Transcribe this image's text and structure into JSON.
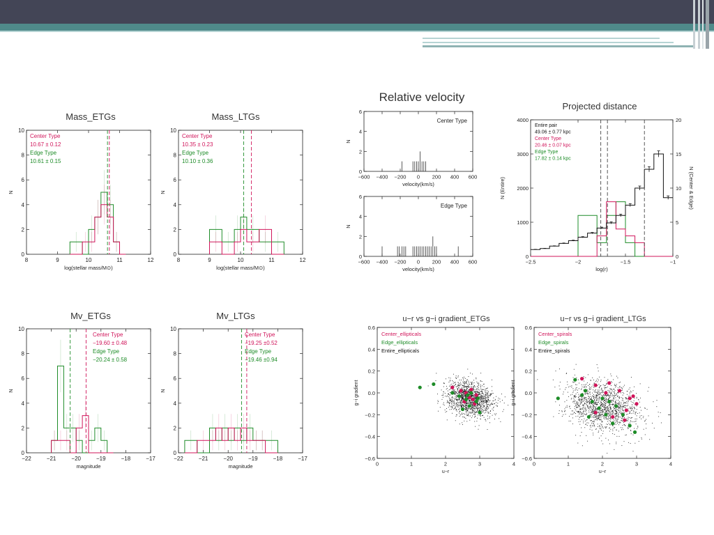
{
  "colors": {
    "center": "#d0145a",
    "edge": "#1e8c28",
    "entire": "#111111",
    "header": "#434556",
    "accent": "#4f8a8a"
  },
  "chart_data": [
    {
      "id": "mass_etgs",
      "type": "bar",
      "title": "Mass_ETGs",
      "xlabel": "log(stellar mass/M⊙)",
      "ylabel": "N",
      "xlim": [
        8,
        12
      ],
      "ylim": [
        0,
        10
      ],
      "xticks": [
        8,
        9,
        10,
        11,
        12
      ],
      "yticks": [
        0,
        2,
        4,
        6,
        8,
        10
      ],
      "bin_edges": [
        9.4,
        9.8,
        10.0,
        10.2,
        10.4,
        10.6,
        10.8,
        11.0,
        11.2
      ],
      "series": [
        {
          "name": "Center Type",
          "values": [
            0,
            1,
            1,
            3,
            4,
            3,
            1,
            0
          ],
          "mean": 10.67,
          "err": 0.12
        },
        {
          "name": "Edge Type",
          "values": [
            1,
            0,
            2,
            3,
            5,
            4,
            1,
            0
          ],
          "mean": 10.61,
          "err": 0.15
        }
      ],
      "legend": [
        "Center Type",
        "10.67 ± 0.12",
        "Edge Type",
        "10.61 ± 0.15"
      ]
    },
    {
      "id": "mass_ltgs",
      "type": "bar",
      "title": "Mass_LTGs",
      "xlabel": "log(stellar mass/M⊙)",
      "ylabel": "N",
      "xlim": [
        8,
        12
      ],
      "ylim": [
        0,
        10
      ],
      "xticks": [
        8,
        9,
        10,
        11,
        12
      ],
      "yticks": [
        0,
        2,
        4,
        6,
        8,
        10
      ],
      "bin_edges": [
        9.0,
        9.4,
        9.8,
        10.0,
        10.2,
        10.6,
        11.0,
        11.4
      ],
      "series": [
        {
          "name": "Center Type",
          "values": [
            1,
            0,
            1,
            2,
            1,
            2,
            0
          ],
          "mean": 10.35,
          "err": 0.23
        },
        {
          "name": "Edge Type",
          "values": [
            2,
            1,
            2,
            3,
            2,
            1,
            1
          ],
          "mean": 10.1,
          "err": 0.36
        }
      ],
      "legend": [
        "Center Type",
        "10.35 ± 0.23",
        "Edge Type",
        "10.10 ± 0.36"
      ]
    },
    {
      "id": "mv_etgs",
      "type": "bar",
      "title": "Mv_ETGs",
      "xlabel": "magnitude",
      "ylabel": "N",
      "xlim": [
        -22,
        -17
      ],
      "ylim": [
        0,
        10
      ],
      "xticks": [
        -22,
        -21,
        -20,
        -19,
        -18,
        -17
      ],
      "yticks": [
        0,
        2,
        4,
        6,
        8,
        10
      ],
      "bin_edges": [
        -21.0,
        -20.75,
        -20.5,
        -20.25,
        -20.0,
        -19.75,
        -19.5,
        -19.25,
        -19.0,
        -18.75,
        -18.5
      ],
      "series": [
        {
          "name": "Center Type",
          "values": [
            1,
            1,
            1,
            0,
            2,
            3,
            0,
            0,
            0,
            0
          ],
          "mean": -19.6,
          "err": 0.48
        },
        {
          "name": "Edge Type",
          "values": [
            1,
            7,
            2,
            2,
            1,
            0,
            1,
            2,
            1,
            0
          ],
          "mean": -20.24,
          "err": 0.58
        }
      ],
      "legend": [
        "Center Type",
        "−19.60 ± 0.48",
        "Edge Type",
        "−20.24 ± 0.58"
      ]
    },
    {
      "id": "mv_ltgs",
      "type": "bar",
      "title": "Mv_LTGs",
      "xlabel": "magnitude",
      "ylabel": "N",
      "xlim": [
        -22,
        -17
      ],
      "ylim": [
        0,
        10
      ],
      "xticks": [
        -22,
        -21,
        -20,
        -19,
        -18,
        -17
      ],
      "yticks": [
        0,
        2,
        4,
        6,
        8,
        10
      ],
      "bin_edges": [
        -21.75,
        -21.25,
        -20.75,
        -20.5,
        -20.25,
        -20.0,
        -19.75,
        -19.5,
        -19.25,
        -19.0,
        -18.75,
        -18.5,
        -18.0
      ],
      "series": [
        {
          "name": "Center Type",
          "values": [
            0,
            1,
            1,
            2,
            1,
            2,
            1,
            2,
            1,
            1,
            1,
            0
          ],
          "mean": -19.25,
          "err": 0.52
        },
        {
          "name": "Edge Type",
          "values": [
            1,
            0,
            2,
            1,
            2,
            1,
            2,
            1,
            2,
            1,
            1,
            1
          ],
          "mean": -19.46,
          "err": 0.94
        }
      ],
      "legend": [
        "Center Type",
        "−19.25 ±0.52",
        "Edge Type",
        "−19.46 ±0.94"
      ]
    },
    {
      "id": "relvel_center",
      "type": "bar",
      "title": "Relative velocity",
      "xlabel": "velocity(km/s)",
      "ylabel": "N",
      "xlim": [
        -600,
        600
      ],
      "ylim": [
        0,
        6
      ],
      "xticks": [
        -600,
        -400,
        -200,
        0,
        200,
        400,
        600
      ],
      "yticks": [
        0,
        2,
        4,
        6
      ],
      "panel_label": "Center Type",
      "bars": [
        [
          -180,
          1
        ],
        [
          -60,
          1
        ],
        [
          -40,
          1
        ],
        [
          -20,
          1
        ],
        [
          0,
          1
        ],
        [
          20,
          2
        ],
        [
          40,
          1
        ],
        [
          60,
          1
        ],
        [
          80,
          1
        ]
      ]
    },
    {
      "id": "relvel_edge",
      "type": "bar",
      "xlabel": "velocity(km/s)",
      "ylabel": "N",
      "xlim": [
        -600,
        600
      ],
      "ylim": [
        0,
        6
      ],
      "xticks": [
        -600,
        -400,
        -200,
        0,
        200,
        400,
        600
      ],
      "yticks": [
        0,
        2,
        4,
        6
      ],
      "panel_label": "Edge Type",
      "bars": [
        [
          -400,
          1
        ],
        [
          -230,
          1
        ],
        [
          -210,
          1
        ],
        [
          -180,
          1
        ],
        [
          -160,
          1
        ],
        [
          -140,
          1
        ],
        [
          -60,
          1
        ],
        [
          -40,
          1
        ],
        [
          -20,
          1
        ],
        [
          0,
          1
        ],
        [
          20,
          1
        ],
        [
          40,
          1
        ],
        [
          60,
          1
        ],
        [
          80,
          1
        ],
        [
          100,
          1
        ],
        [
          120,
          1
        ],
        [
          140,
          1
        ],
        [
          160,
          2
        ],
        [
          180,
          1
        ],
        [
          200,
          1
        ],
        [
          440,
          1
        ]
      ]
    },
    {
      "id": "projected_distance",
      "type": "bar",
      "title": "Projected distance",
      "xlabel": "log(r)",
      "ylabel": "N (Entire)",
      "y2label": "N (Center & Edge)",
      "xlim": [
        -2.5,
        -1.0
      ],
      "ylim": [
        0,
        4000
      ],
      "y2lim": [
        0,
        20
      ],
      "xticks": [
        -2.5,
        -2.0,
        -1.5,
        -1.0
      ],
      "yticks": [
        0,
        1000,
        2000,
        3000,
        4000
      ],
      "y2ticks": [
        0,
        5,
        10,
        15,
        20
      ],
      "bin_edges": [
        -2.5,
        -2.4,
        -2.3,
        -2.2,
        -2.1,
        -2.0,
        -1.9,
        -1.8,
        -1.7,
        -1.6,
        -1.5,
        -1.4,
        -1.3,
        -1.2,
        -1.1,
        -1.0
      ],
      "series": [
        {
          "name": "Entire pair",
          "axis": "left",
          "values": [
            200,
            230,
            300,
            380,
            460,
            560,
            680,
            830,
            980,
            1200,
            1500,
            2000,
            2550,
            3000,
            1720
          ],
          "mean": 49.06,
          "err": 0.77
        },
        {
          "name": "Center Type",
          "axis": "right",
          "values": [
            0,
            0,
            0,
            0,
            0,
            0,
            0,
            3,
            8,
            4,
            3,
            2,
            0,
            0,
            0
          ],
          "mean": 20.46,
          "err": 0.07
        },
        {
          "name": "Edge Type",
          "axis": "right",
          "values": [
            0,
            0,
            0,
            0,
            0,
            6,
            6,
            2,
            6,
            8,
            2,
            0,
            0,
            0,
            0
          ],
          "mean": 17.82,
          "err": 0.14
        }
      ],
      "vlines": [
        -1.76,
        -1.69,
        -1.3
      ],
      "legend": [
        "Entire pair",
        "49.06 ± 0.77 kpc",
        "Center Type",
        "20.46 ± 0.07 kpc",
        "Edge Type",
        "17.82 ± 0.14 kpc"
      ]
    },
    {
      "id": "ur_etgs",
      "type": "scatter",
      "title": "u−r vs g−i gradient_ETGs",
      "xlabel": "u−r",
      "ylabel": "g−i gradient",
      "xlim": [
        0,
        4
      ],
      "ylim": [
        -0.6,
        0.6
      ],
      "xticks": [
        0,
        1,
        2,
        3,
        4
      ],
      "yticks": [
        -0.6,
        -0.4,
        -0.2,
        0.0,
        0.2,
        0.4,
        0.6
      ],
      "legend": [
        "Center_ellipticals",
        "Edge_ellipticals",
        "Entire_ellipticals"
      ],
      "cloud": {
        "center": [
          2.7,
          -0.05
        ],
        "spread": [
          0.35,
          0.08
        ]
      },
      "center_points": [
        [
          2.2,
          0.05
        ],
        [
          2.45,
          0.02
        ],
        [
          2.6,
          0.0
        ],
        [
          2.7,
          -0.04
        ],
        [
          2.8,
          -0.06
        ],
        [
          2.9,
          -0.02
        ],
        [
          2.75,
          0.03
        ],
        [
          2.55,
          -0.08
        ],
        [
          2.85,
          -0.1
        ]
      ],
      "edge_points": [
        [
          1.25,
          0.05
        ],
        [
          1.65,
          0.08
        ],
        [
          2.2,
          0.0
        ],
        [
          2.4,
          -0.03
        ],
        [
          2.6,
          -0.06
        ],
        [
          2.7,
          -0.12
        ],
        [
          2.9,
          -0.08
        ],
        [
          3.0,
          -0.18
        ],
        [
          2.5,
          -0.15
        ],
        [
          2.75,
          0.0
        ],
        [
          2.95,
          -0.05
        ],
        [
          2.65,
          -0.02
        ]
      ]
    },
    {
      "id": "ur_ltgs",
      "type": "scatter",
      "title": "u−r vs g−i gradient_LTGs",
      "xlabel": "u−r",
      "ylabel": "g−i gradient",
      "xlim": [
        0,
        4
      ],
      "ylim": [
        -0.6,
        0.6
      ],
      "xticks": [
        0,
        1,
        2,
        3,
        4
      ],
      "yticks": [
        -0.6,
        -0.4,
        -0.2,
        0.0,
        0.2,
        0.4,
        0.6
      ],
      "legend": [
        "Center_spirals",
        "Edge_spirals",
        "Entire_spirals"
      ],
      "cloud": {
        "center": [
          2.0,
          -0.12
        ],
        "spread": [
          0.55,
          0.12
        ]
      },
      "center_points": [
        [
          1.4,
          0.13
        ],
        [
          1.8,
          0.07
        ],
        [
          2.2,
          0.09
        ],
        [
          2.5,
          0.02
        ],
        [
          2.8,
          -0.05
        ],
        [
          3.0,
          -0.1
        ],
        [
          2.7,
          -0.16
        ],
        [
          2.3,
          -0.22
        ],
        [
          1.8,
          -0.18
        ],
        [
          2.1,
          0.0
        ],
        [
          2.65,
          -0.25
        ],
        [
          2.9,
          -0.03
        ]
      ],
      "edge_points": [
        [
          0.7,
          -0.05
        ],
        [
          1.2,
          0.12
        ],
        [
          1.5,
          0.02
        ],
        [
          1.7,
          -0.08
        ],
        [
          1.9,
          -0.14
        ],
        [
          2.1,
          -0.2
        ],
        [
          2.4,
          -0.12
        ],
        [
          2.6,
          -0.2
        ],
        [
          2.8,
          -0.3
        ],
        [
          2.95,
          -0.36
        ],
        [
          1.4,
          -0.02
        ],
        [
          2.0,
          -0.05
        ],
        [
          2.3,
          -0.28
        ],
        [
          1.6,
          -0.22
        ],
        [
          2.2,
          -0.08
        ]
      ]
    }
  ]
}
